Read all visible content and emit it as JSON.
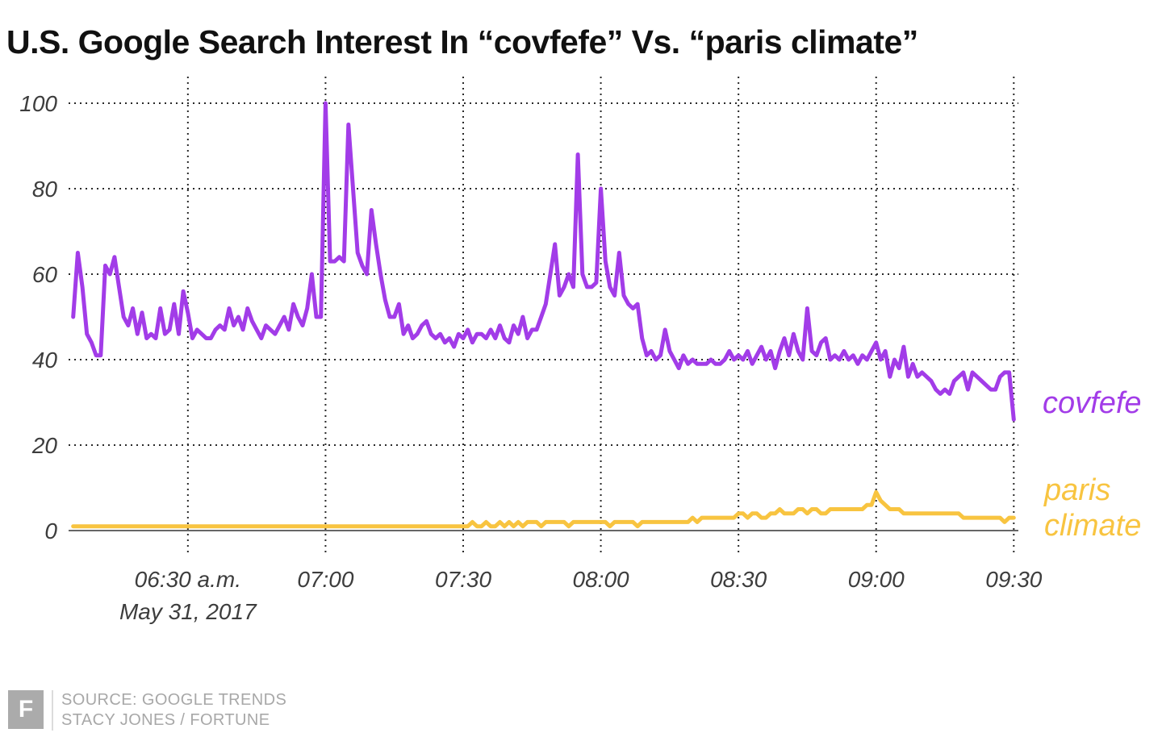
{
  "page": {
    "title": "U.S. Google Search Interest In “covfefe” Vs. “paris climate”"
  },
  "footer": {
    "logo_letter": "F",
    "source_line1": "SOURCE: GOOGLE TRENDS",
    "source_line2": "STACY JONES / FORTUNE"
  },
  "colors": {
    "covfefe": "#a23ce8",
    "paris_climate": "#f8c440",
    "grid": "#2a2a2a",
    "axis": "#666666",
    "tick_text": "#3d3d3d",
    "title_text": "#111111",
    "footer_gray": "#a8a8a8"
  },
  "chart_data": {
    "type": "line",
    "title": "U.S. Google Search Interest In “covfefe” Vs. “paris climate”",
    "grid": "dotted",
    "legend_position": "right-of-line-end",
    "source": "SOURCE: GOOGLE TRENDS — STACY JONES / FORTUNE",
    "x_axis": {
      "unit": "minutes_after_midnight",
      "date": "May 31, 2017",
      "range": [
        364,
        571
      ],
      "ticks": [
        {
          "minute": 390,
          "label": "06:30 a.m.",
          "sub_label": "May 31, 2017"
        },
        {
          "minute": 420,
          "label": "07:00"
        },
        {
          "minute": 450,
          "label": "07:30"
        },
        {
          "minute": 480,
          "label": "08:00"
        },
        {
          "minute": 510,
          "label": "08:30"
        },
        {
          "minute": 540,
          "label": "09:00"
        },
        {
          "minute": 570,
          "label": "09:30"
        }
      ]
    },
    "y_axis": {
      "range": [
        0,
        100
      ],
      "ticks": [
        0,
        20,
        40,
        60,
        80,
        100
      ]
    },
    "series": [
      {
        "name": "covfefe",
        "label": "covfefe",
        "color": "#a23ce8",
        "start_minute": 365,
        "step_minutes": 1,
        "values": [
          50,
          65,
          57,
          46,
          44,
          41,
          41,
          62,
          60,
          64,
          57,
          50,
          48,
          52,
          46,
          51,
          45,
          46,
          45,
          52,
          46,
          47,
          53,
          46,
          56,
          51,
          45,
          47,
          46,
          45,
          45,
          47,
          48,
          47,
          52,
          48,
          50,
          47,
          52,
          49,
          47,
          45,
          48,
          47,
          46,
          48,
          50,
          47,
          53,
          50,
          48,
          52,
          60,
          50,
          50,
          100,
          63,
          63,
          64,
          63,
          95,
          80,
          65,
          62,
          60,
          75,
          67,
          60,
          54,
          50,
          50,
          53,
          46,
          48,
          45,
          46,
          48,
          49,
          46,
          45,
          46,
          44,
          45,
          43,
          46,
          45,
          47,
          44,
          46,
          46,
          45,
          47,
          45,
          48,
          45,
          44,
          48,
          46,
          50,
          45,
          47,
          47,
          50,
          53,
          60,
          67,
          55,
          57,
          60,
          57,
          88,
          60,
          57,
          57,
          58,
          80,
          63,
          57,
          55,
          65,
          55,
          53,
          52,
          53,
          45,
          41,
          42,
          40,
          41,
          47,
          42,
          40,
          38,
          41,
          39,
          40,
          39,
          39,
          39,
          40,
          39,
          39,
          40,
          42,
          40,
          41,
          40,
          42,
          39,
          41,
          43,
          40,
          42,
          38,
          42,
          45,
          41,
          46,
          42,
          40,
          52,
          42,
          41,
          44,
          45,
          40,
          41,
          40,
          42,
          40,
          41,
          39,
          41,
          40,
          42,
          44,
          40,
          42,
          36,
          40,
          38,
          43,
          36,
          39,
          36,
          37,
          36,
          35,
          33,
          32,
          33,
          32,
          35,
          36,
          37,
          33,
          37,
          36,
          35,
          34,
          33,
          33,
          36,
          37,
          37,
          26
        ]
      },
      {
        "name": "paris climate",
        "label": "paris climate",
        "label_lines": [
          "paris",
          "climate"
        ],
        "color": "#f8c440",
        "start_minute": 365,
        "step_minutes": 1,
        "values": [
          1,
          1,
          1,
          1,
          1,
          1,
          1,
          1,
          1,
          1,
          1,
          1,
          1,
          1,
          1,
          1,
          1,
          1,
          1,
          1,
          1,
          1,
          1,
          1,
          1,
          1,
          1,
          1,
          1,
          1,
          1,
          1,
          1,
          1,
          1,
          1,
          1,
          1,
          1,
          1,
          1,
          1,
          1,
          1,
          1,
          1,
          1,
          1,
          1,
          1,
          1,
          1,
          1,
          1,
          1,
          1,
          1,
          1,
          1,
          1,
          1,
          1,
          1,
          1,
          1,
          1,
          1,
          1,
          1,
          1,
          1,
          1,
          1,
          1,
          1,
          1,
          1,
          1,
          1,
          1,
          1,
          1,
          1,
          1,
          1,
          1,
          1,
          2,
          1,
          1,
          2,
          1,
          1,
          2,
          1,
          2,
          1,
          2,
          1,
          2,
          2,
          2,
          1,
          2,
          2,
          2,
          2,
          2,
          1,
          2,
          2,
          2,
          2,
          2,
          2,
          2,
          2,
          1,
          2,
          2,
          2,
          2,
          2,
          1,
          2,
          2,
          2,
          2,
          2,
          2,
          2,
          2,
          2,
          2,
          2,
          3,
          2,
          3,
          3,
          3,
          3,
          3,
          3,
          3,
          3,
          4,
          4,
          3,
          4,
          4,
          3,
          3,
          4,
          4,
          5,
          4,
          4,
          4,
          5,
          5,
          4,
          5,
          5,
          4,
          4,
          5,
          5,
          5,
          5,
          5,
          5,
          5,
          5,
          6,
          6,
          9,
          7,
          6,
          5,
          5,
          5,
          4,
          4,
          4,
          4,
          4,
          4,
          4,
          4,
          4,
          4,
          4,
          4,
          4,
          3,
          3,
          3,
          3,
          3,
          3,
          3,
          3,
          3,
          2,
          3,
          3
        ]
      }
    ]
  }
}
